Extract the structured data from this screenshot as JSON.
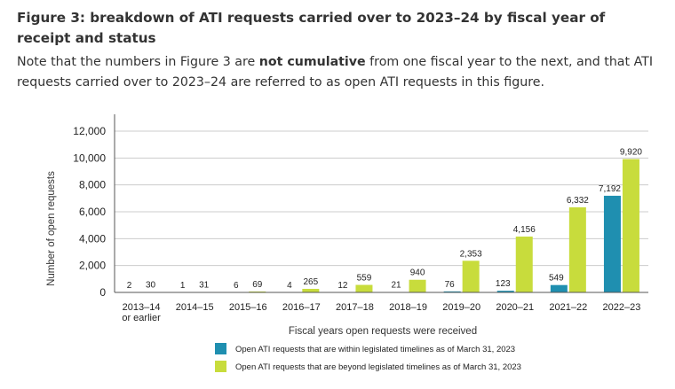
{
  "title": "Figure 3: breakdown of ATI requests carried over to 2023–24 by fiscal year of receipt and status",
  "note": {
    "before": "Note that the numbers in Figure 3 are ",
    "emphasis": "not cumulative",
    "after": " from one fiscal year to the next, and that ATI requests carried over to 2023–24 are referred to as open ATI requests in this figure."
  },
  "chart_data": {
    "type": "bar",
    "categories": [
      [
        "2013–14",
        "or earlier"
      ],
      [
        "2014–15"
      ],
      [
        "2015–16"
      ],
      [
        "2016–17"
      ],
      [
        "2017–18"
      ],
      [
        "2018–19"
      ],
      [
        "2019–20"
      ],
      [
        "2020–21"
      ],
      [
        "2021–22"
      ],
      [
        "2022–23"
      ]
    ],
    "series": [
      {
        "name": "Open ATI requests that are within legislated timelines as of March 31, 2023",
        "color": "#1f8fb0",
        "values": [
          2,
          1,
          6,
          4,
          12,
          21,
          76,
          123,
          549,
          7192
        ],
        "labels": [
          "2",
          "1",
          "6",
          "4",
          "12",
          "21",
          "76",
          "123",
          "549",
          "7,192"
        ]
      },
      {
        "name": "Open ATI requests that are beyond legislated timelines as of March 31, 2023",
        "color": "#c8dc3c",
        "values": [
          30,
          31,
          69,
          265,
          559,
          940,
          2353,
          4156,
          6332,
          9920
        ],
        "labels": [
          "30",
          "31",
          "69",
          "265",
          "559",
          "940",
          "2,353",
          "4,156",
          "6,332",
          "9,920"
        ]
      }
    ],
    "ylim": [
      0,
      12000
    ],
    "yticks": [
      0,
      2000,
      4000,
      6000,
      8000,
      10000,
      12000
    ],
    "ytick_labels": [
      "0",
      "2,000",
      "4,000",
      "6,000",
      "8,000",
      "10,000",
      "12,000"
    ],
    "xlabel": "Fiscal years open requests were received",
    "ylabel": "Number of open requests",
    "grid": true,
    "legend_position": "bottom"
  }
}
